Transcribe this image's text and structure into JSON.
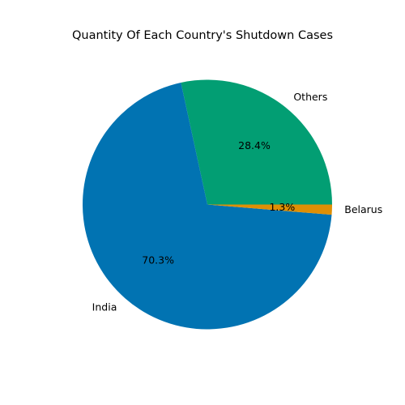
{
  "chart_data": {
    "type": "pie",
    "title": "Quantity Of Each Country's Shutdown Cases",
    "slices": [
      {
        "label": "Others",
        "value": 28.4,
        "pct_label": "28.4%",
        "color": "#029e73"
      },
      {
        "label": "India",
        "value": 70.3,
        "pct_label": "70.3%",
        "color": "#0173b2"
      },
      {
        "label": "Belarus",
        "value": 1.3,
        "pct_label": "1.3%",
        "color": "#de8f05"
      }
    ],
    "start_angle": 0,
    "direction": "counterclockwise"
  }
}
